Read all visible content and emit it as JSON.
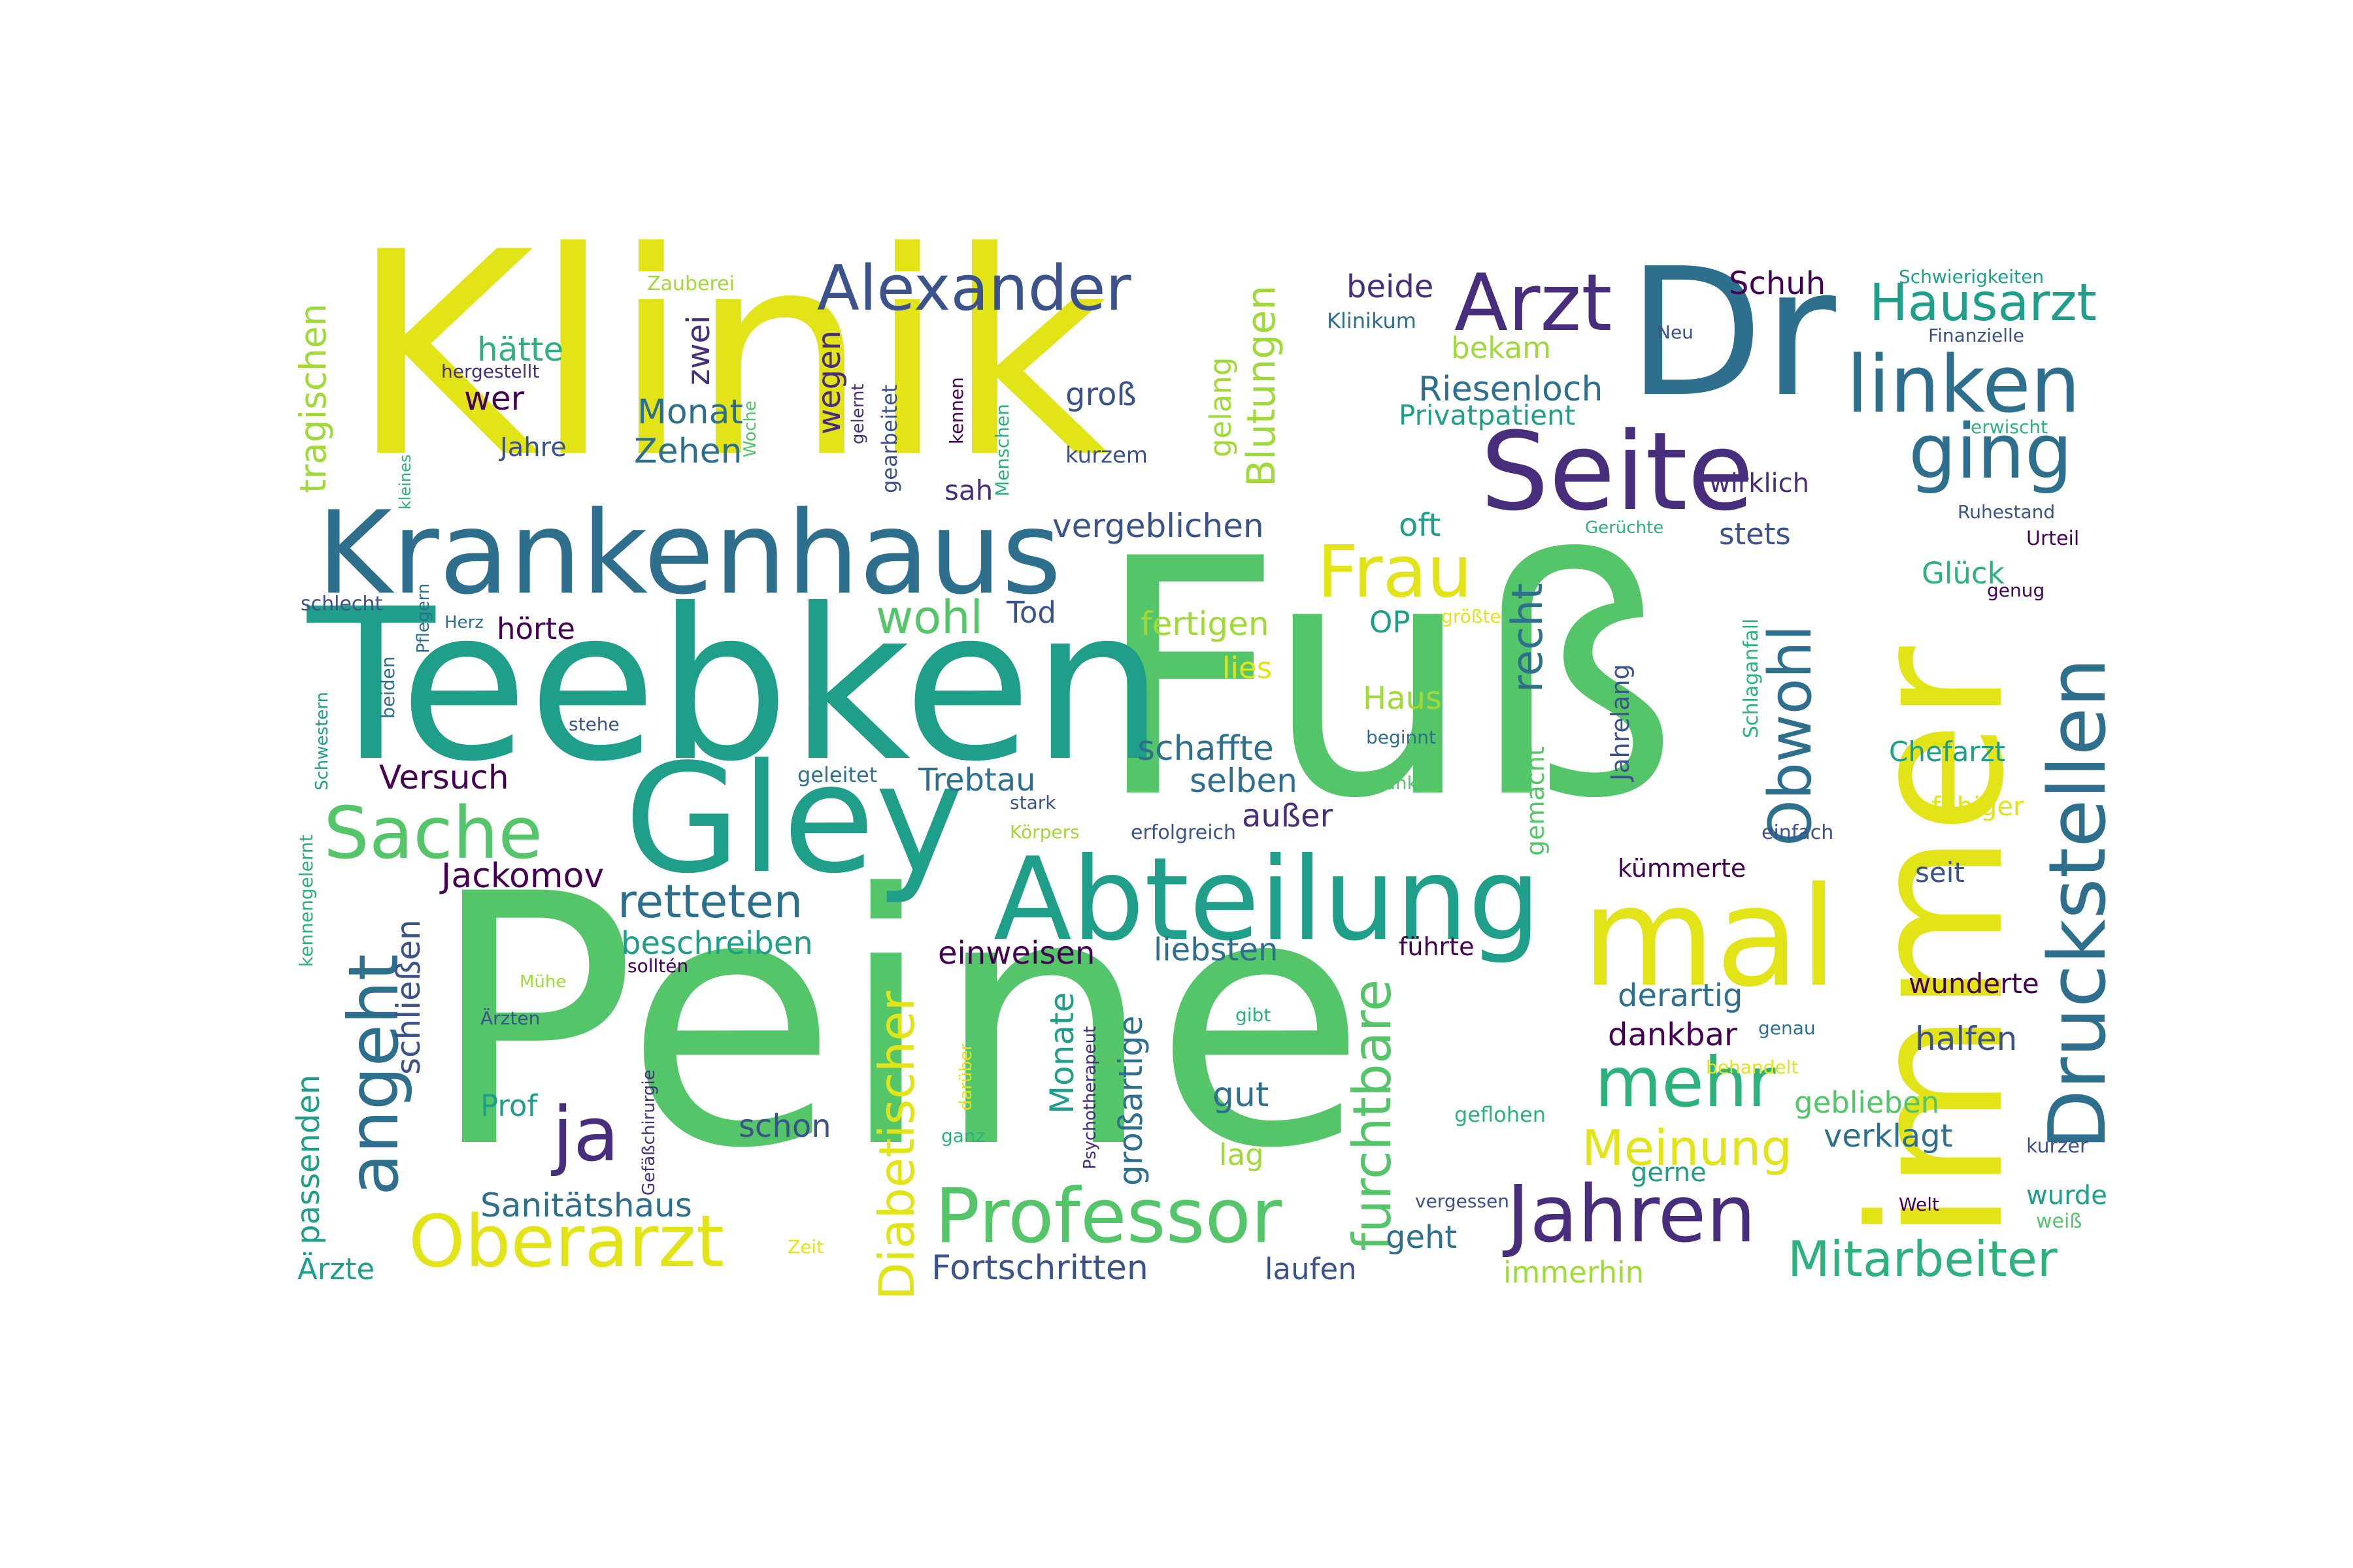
{
  "palette": {
    "y": "#e2e418",
    "lg": "#54c568",
    "g": "#2db27d",
    "t": "#1f9e89",
    "b": "#2e6f8e",
    "db": "#3b528b",
    "p": "#472d7b",
    "dp": "#440154",
    "ly": "#a0da39"
  },
  "words": [
    {
      "t": "Peine",
      "c": "lg"
    },
    {
      "t": "Fuß",
      "c": "lg"
    },
    {
      "t": "Klinik",
      "c": "y"
    },
    {
      "t": "Teebken",
      "c": "t"
    },
    {
      "t": "immer",
      "c": "y"
    },
    {
      "t": "Dr",
      "c": "b"
    },
    {
      "t": "Gley",
      "c": "t"
    },
    {
      "t": "Krankenhaus",
      "c": "b"
    },
    {
      "t": "Abteilung",
      "c": "t"
    },
    {
      "t": "mal",
      "c": "y"
    },
    {
      "t": "Seite",
      "c": "p"
    },
    {
      "t": "Druckstellen",
      "c": "b"
    },
    {
      "t": "Professor",
      "c": "lg"
    },
    {
      "t": "Oberarzt",
      "c": "y"
    },
    {
      "t": "Jahren",
      "c": "p"
    },
    {
      "t": "Arzt",
      "c": "p"
    },
    {
      "t": "linken",
      "c": "b"
    },
    {
      "t": "angeht",
      "c": "b"
    },
    {
      "t": "Sache",
      "c": "lg"
    },
    {
      "t": "Alexander",
      "c": "db"
    },
    {
      "t": "mehr",
      "c": "g"
    },
    {
      "t": "Obwohl",
      "c": "b"
    },
    {
      "t": "ging",
      "c": "b"
    },
    {
      "t": "ja",
      "c": "p"
    },
    {
      "t": "furchtbare",
      "c": "lg"
    },
    {
      "t": "Diabetischer",
      "c": "y"
    },
    {
      "t": "Frau",
      "c": "y"
    },
    {
      "t": "Meinung",
      "c": "y"
    },
    {
      "t": "Mitarbeiter",
      "c": "g"
    },
    {
      "t": "Hausarzt",
      "c": "t"
    },
    {
      "t": "retteten",
      "c": "b"
    },
    {
      "t": "wohl",
      "c": "lg"
    },
    {
      "t": "recht",
      "c": "b"
    },
    {
      "t": "Blutungen",
      "c": "ly"
    },
    {
      "t": "tragischen",
      "c": "ly"
    },
    {
      "t": "passenden",
      "c": "t"
    },
    {
      "t": "Riesenloch",
      "c": "b"
    },
    {
      "t": "Sanitätshaus",
      "c": "b"
    },
    {
      "t": "Jackomov",
      "c": "dp"
    },
    {
      "t": "Fortschritten",
      "c": "db"
    },
    {
      "t": "vergeblichen",
      "c": "db"
    },
    {
      "t": "Monate",
      "c": "t"
    },
    {
      "t": "großartige",
      "c": "b"
    },
    {
      "t": "schließen",
      "c": "db"
    },
    {
      "t": "einweisen",
      "c": "dp"
    },
    {
      "t": "liebsten",
      "c": "b"
    },
    {
      "t": "beschreiben",
      "c": "t"
    },
    {
      "t": "schaffte",
      "c": "b"
    },
    {
      "t": "fertigen",
      "c": "ly"
    },
    {
      "t": "selben",
      "c": "b"
    },
    {
      "t": "Versuch",
      "c": "dp"
    },
    {
      "t": "Trebtau",
      "c": "b"
    },
    {
      "t": "außer",
      "c": "p"
    },
    {
      "t": "Zehen",
      "c": "b"
    },
    {
      "t": "Monat",
      "c": "b"
    },
    {
      "t": "hätte",
      "c": "g"
    },
    {
      "t": "wer",
      "c": "dp"
    },
    {
      "t": "Jahre",
      "c": "db"
    },
    {
      "t": "zwei",
      "c": "p"
    },
    {
      "t": "wegen",
      "c": "p"
    },
    {
      "t": "gelang",
      "c": "ly"
    },
    {
      "t": "groß",
      "c": "db"
    },
    {
      "t": "beide",
      "c": "p"
    },
    {
      "t": "bekam",
      "c": "ly"
    },
    {
      "t": "Privatpatient",
      "c": "t"
    },
    {
      "t": "Schuh",
      "c": "dp"
    },
    {
      "t": "wirklich",
      "c": "p"
    },
    {
      "t": "stets",
      "c": "db"
    },
    {
      "t": "oft",
      "c": "t"
    },
    {
      "t": "Glück",
      "c": "g"
    },
    {
      "t": "Chefarzt",
      "c": "t"
    },
    {
      "t": "Haus",
      "c": "ly"
    },
    {
      "t": "OP",
      "c": "t"
    },
    {
      "t": "lies",
      "c": "y"
    },
    {
      "t": "Tod",
      "c": "db"
    },
    {
      "t": "hörte",
      "c": "dp"
    },
    {
      "t": "gemacht",
      "c": "lg"
    },
    {
      "t": "Jahrelang",
      "c": "db"
    },
    {
      "t": "fähiger",
      "c": "y"
    },
    {
      "t": "kümmerte",
      "c": "dp"
    },
    {
      "t": "seit",
      "c": "db"
    },
    {
      "t": "führte",
      "c": "dp"
    },
    {
      "t": "derartig",
      "c": "b"
    },
    {
      "t": "dankbar",
      "c": "dp"
    },
    {
      "t": "wunderte",
      "c": "dp"
    },
    {
      "t": "halfen",
      "c": "db"
    },
    {
      "t": "geblieben",
      "c": "lg"
    },
    {
      "t": "verklagt",
      "c": "b"
    },
    {
      "t": "gerne",
      "c": "t"
    },
    {
      "t": "wurde",
      "c": "t"
    },
    {
      "t": "gut",
      "c": "b"
    },
    {
      "t": "lag",
      "c": "ly"
    },
    {
      "t": "geht",
      "c": "b"
    },
    {
      "t": "laufen",
      "c": "db"
    },
    {
      "t": "immerhin",
      "c": "ly"
    },
    {
      "t": "schon",
      "c": "db"
    },
    {
      "t": "Prof",
      "c": "t"
    },
    {
      "t": "Ärzte",
      "c": "t"
    },
    {
      "t": "Zauberei",
      "c": "ly"
    },
    {
      "t": "hergestellt",
      "c": "p"
    },
    {
      "t": "kleines",
      "c": "g"
    },
    {
      "t": "Woche",
      "c": "lg"
    },
    {
      "t": "gelernt",
      "c": "p"
    },
    {
      "t": "gearbeitet",
      "c": "db"
    },
    {
      "t": "kennen",
      "c": "dp"
    },
    {
      "t": "Menschen",
      "c": "g"
    },
    {
      "t": "kurzem",
      "c": "db"
    },
    {
      "t": "sah",
      "c": "p"
    },
    {
      "t": "Klinikum",
      "c": "b"
    },
    {
      "t": "Neu",
      "c": "db"
    },
    {
      "t": "Schwierigkeiten",
      "c": "t"
    },
    {
      "t": "Finanzielle",
      "c": "db"
    },
    {
      "t": "erwischt",
      "c": "g"
    },
    {
      "t": "Ruhestand",
      "c": "db"
    },
    {
      "t": "Urteil",
      "c": "dp"
    },
    {
      "t": "genug",
      "c": "dp"
    },
    {
      "t": "Gerüchte",
      "c": "g"
    },
    {
      "t": "größte",
      "c": "y"
    },
    {
      "t": "Schlaganfall",
      "c": "g"
    },
    {
      "t": "beginnt",
      "c": "b"
    },
    {
      "t": "danken",
      "c": "lg"
    },
    {
      "t": "einfach",
      "c": "db"
    },
    {
      "t": "erfolgreich",
      "c": "db"
    },
    {
      "t": "Körpers",
      "c": "ly"
    },
    {
      "t": "stark",
      "c": "db"
    },
    {
      "t": "geleitet",
      "c": "b"
    },
    {
      "t": "stehe",
      "c": "db"
    },
    {
      "t": "Herz",
      "c": "b"
    },
    {
      "t": "schlecht",
      "c": "db"
    },
    {
      "t": "Pflegern",
      "c": "b"
    },
    {
      "t": "beiden",
      "c": "b"
    },
    {
      "t": "Schwestern",
      "c": "t"
    },
    {
      "t": "kennengelernt",
      "c": "g"
    },
    {
      "t": "solltén",
      "c": "dp"
    },
    {
      "t": "Mühe",
      "c": "ly"
    },
    {
      "t": "Ärzten",
      "c": "db"
    },
    {
      "t": "Gefäßchirurgie",
      "c": "p"
    },
    {
      "t": "darüber",
      "c": "y"
    },
    {
      "t": "ganz",
      "c": "g"
    },
    {
      "t": "Psychotherapeut",
      "c": "p"
    },
    {
      "t": "gibt",
      "c": "g"
    },
    {
      "t": "genau",
      "c": "b"
    },
    {
      "t": "behandelt",
      "c": "y"
    },
    {
      "t": "geflohen",
      "c": "g"
    },
    {
      "t": "vergessen",
      "c": "db"
    },
    {
      "t": "Welt",
      "c": "dp"
    },
    {
      "t": "kurzer",
      "c": "db"
    },
    {
      "t": "weiß",
      "c": "lg"
    },
    {
      "t": "Zeit",
      "c": "y"
    }
  ]
}
